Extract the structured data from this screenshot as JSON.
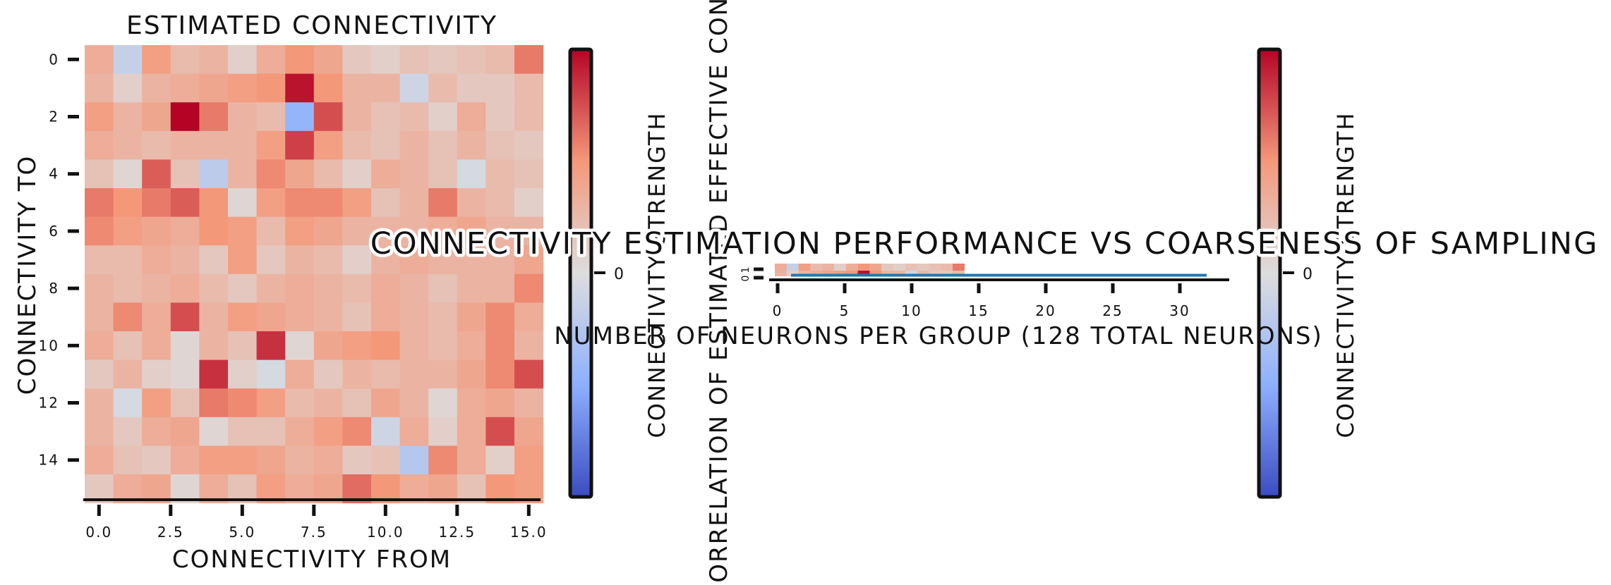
{
  "chart_data": [
    {
      "type": "heatmap",
      "title": "ESTIMATED CONNECTIVITY",
      "xlabel": "CONNECTIVITY FROM",
      "ylabel": "CONNECTIVITY TO",
      "x_ticks": [
        "0.0",
        "2.5",
        "5.0",
        "7.5",
        "10.0",
        "12.5",
        "15.0"
      ],
      "y_ticks": [
        "0",
        "2",
        "4",
        "6",
        "8",
        "10",
        "12",
        "14"
      ],
      "colorbar": {
        "label": "CONNECTIVITY STRENGTH",
        "tick": "0",
        "colormap": "coolwarm"
      },
      "matrix": [
        [
          0.35,
          -0.15,
          0.45,
          0.25,
          0.3,
          0.1,
          0.35,
          0.5,
          0.4,
          0.15,
          0.1,
          0.2,
          0.15,
          0.2,
          0.25,
          0.6
        ],
        [
          0.3,
          0.1,
          0.3,
          0.35,
          0.4,
          0.45,
          0.5,
          0.95,
          0.5,
          0.3,
          0.3,
          -0.1,
          0.25,
          0.15,
          0.15,
          0.25
        ],
        [
          0.45,
          0.3,
          0.4,
          1.0,
          0.6,
          0.3,
          0.25,
          -0.45,
          0.75,
          0.3,
          0.2,
          0.25,
          0.1,
          0.35,
          0.15,
          0.25
        ],
        [
          0.35,
          0.3,
          0.25,
          0.3,
          0.3,
          0.3,
          0.45,
          0.8,
          0.45,
          0.25,
          0.2,
          0.3,
          0.2,
          0.3,
          0.2,
          0.15
        ],
        [
          0.2,
          0.05,
          0.7,
          0.2,
          -0.2,
          0.3,
          0.55,
          0.4,
          0.25,
          0.1,
          0.35,
          0.3,
          0.2,
          -0.05,
          0.25,
          0.2
        ],
        [
          0.6,
          0.5,
          0.6,
          0.7,
          0.5,
          0.05,
          0.45,
          0.55,
          0.55,
          0.45,
          0.2,
          0.3,
          0.6,
          0.3,
          0.25,
          0.1
        ],
        [
          0.55,
          0.45,
          0.4,
          0.35,
          0.5,
          0.45,
          0.25,
          0.45,
          0.4,
          0.3,
          0.3,
          0.3,
          0.35,
          0.4,
          0.3,
          0.3
        ],
        [
          0.25,
          0.25,
          0.35,
          0.3,
          0.15,
          0.45,
          0.15,
          0.3,
          0.25,
          0.1,
          0.3,
          0.35,
          0.3,
          0.3,
          0.3,
          0.4
        ],
        [
          0.3,
          0.25,
          0.3,
          0.35,
          0.25,
          0.15,
          0.3,
          0.35,
          0.3,
          0.25,
          0.35,
          0.3,
          0.2,
          0.3,
          0.3,
          0.55
        ],
        [
          0.3,
          0.55,
          0.35,
          0.75,
          0.3,
          0.45,
          0.4,
          0.35,
          0.3,
          0.2,
          0.35,
          0.3,
          0.25,
          0.4,
          0.55,
          0.35
        ],
        [
          0.35,
          0.2,
          0.35,
          0.05,
          0.3,
          0.2,
          0.85,
          0.05,
          0.4,
          0.45,
          0.5,
          0.3,
          0.25,
          0.35,
          0.55,
          0.3
        ],
        [
          0.15,
          0.3,
          0.1,
          0.05,
          0.85,
          0.1,
          -0.05,
          0.35,
          0.15,
          0.3,
          0.25,
          0.3,
          0.3,
          0.4,
          0.55,
          0.75
        ],
        [
          0.3,
          -0.05,
          0.45,
          0.2,
          0.6,
          0.55,
          0.45,
          0.25,
          0.3,
          0.2,
          0.4,
          0.3,
          0.05,
          0.35,
          0.4,
          0.3
        ],
        [
          0.3,
          0.15,
          0.35,
          0.4,
          0.05,
          0.2,
          0.2,
          0.35,
          0.45,
          0.55,
          -0.1,
          0.35,
          0.1,
          0.35,
          0.75,
          0.4
        ],
        [
          0.35,
          0.2,
          0.15,
          0.35,
          0.45,
          0.45,
          0.4,
          0.3,
          0.35,
          0.15,
          0.2,
          -0.25,
          0.55,
          0.35,
          0.1,
          0.45
        ],
        [
          0.15,
          0.35,
          0.4,
          0.05,
          0.35,
          0.2,
          0.45,
          0.35,
          0.4,
          0.65,
          0.5,
          0.35,
          0.4,
          0.2,
          0.5,
          0.45
        ]
      ]
    },
    {
      "type": "line",
      "title": "CONNECTIVITY ESTIMATION PERFORMANCE VS COARSENESS OF SAMPLING",
      "xlabel": "NUMBER OF NEURONS PER GROUP (128 TOTAL NEURONS)",
      "ylabel": "CORRELATION OF ESTIMATED EFFECTIVE CONN",
      "x_ticks": [
        "0",
        "5",
        "10",
        "15",
        "20",
        "25",
        "30"
      ],
      "y_ticks": [
        "0",
        "1"
      ],
      "xlim": [
        -1,
        34
      ],
      "ylim": [
        0,
        1
      ],
      "x": [
        1,
        2,
        4,
        8,
        16,
        32
      ],
      "series": [
        {
          "values": [
            0.05,
            0.05,
            0.05,
            0.05,
            0.05,
            0.05
          ],
          "color": "#1f77b4"
        }
      ]
    },
    {
      "type": "colorbar",
      "label": "CONNECTIVITY STRENGTH",
      "tick": "0",
      "colormap": "coolwarm"
    }
  ]
}
